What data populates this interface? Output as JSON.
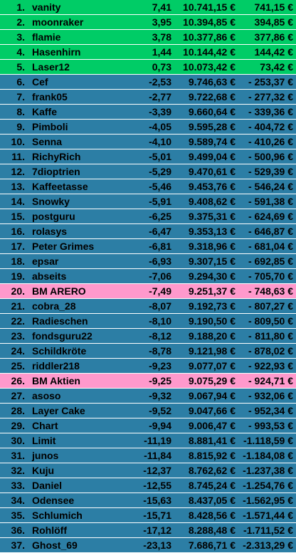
{
  "colors": {
    "top": "#00cc66",
    "base": "#2c7ea5",
    "highlight": "#ff99cc"
  },
  "rows": [
    {
      "rank": "1.",
      "name": "vanity",
      "change": "7,41",
      "value": "10.741,15 €",
      "sign": "",
      "delta": "741,15 €",
      "style": "green"
    },
    {
      "rank": "2.",
      "name": "moonraker",
      "change": "3,95",
      "value": "10.394,85 €",
      "sign": "",
      "delta": "394,85 €",
      "style": "green"
    },
    {
      "rank": "3.",
      "name": "flamie",
      "change": "3,78",
      "value": "10.377,86 €",
      "sign": "",
      "delta": "377,86 €",
      "style": "green"
    },
    {
      "rank": "4.",
      "name": "Hasenhirn",
      "change": "1,44",
      "value": "10.144,42 €",
      "sign": "",
      "delta": "144,42 €",
      "style": "green"
    },
    {
      "rank": "5.",
      "name": "Laser12",
      "change": "0,73",
      "value": "10.073,42 €",
      "sign": "",
      "delta": "73,42 €",
      "style": "green"
    },
    {
      "rank": "6.",
      "name": "Cef",
      "change": "-2,53",
      "value": "9.746,63 €",
      "sign": "-",
      "delta": "253,37 €",
      "style": "blue"
    },
    {
      "rank": "7.",
      "name": "frank05",
      "change": "-2,77",
      "value": "9.722,68 €",
      "sign": "-",
      "delta": "277,32 €",
      "style": "blue"
    },
    {
      "rank": "8.",
      "name": "Kaffe",
      "change": "-3,39",
      "value": "9.660,64 €",
      "sign": "-",
      "delta": "339,36 €",
      "style": "blue"
    },
    {
      "rank": "9.",
      "name": "Pimboli",
      "change": "-4,05",
      "value": "9.595,28 €",
      "sign": "-",
      "delta": "404,72 €",
      "style": "blue"
    },
    {
      "rank": "10.",
      "name": "Senna",
      "change": "-4,10",
      "value": "9.589,74 €",
      "sign": "-",
      "delta": "410,26 €",
      "style": "blue"
    },
    {
      "rank": "11.",
      "name": "RichyRich",
      "change": "-5,01",
      "value": "9.499,04 €",
      "sign": "-",
      "delta": "500,96 €",
      "style": "blue"
    },
    {
      "rank": "12.",
      "name": "7dioptrien",
      "change": "-5,29",
      "value": "9.470,61 €",
      "sign": "-",
      "delta": "529,39 €",
      "style": "blue"
    },
    {
      "rank": "13.",
      "name": "Kaffeetasse",
      "change": "-5,46",
      "value": "9.453,76 €",
      "sign": "-",
      "delta": "546,24 €",
      "style": "blue"
    },
    {
      "rank": "14.",
      "name": "Snowky",
      "change": "-5,91",
      "value": "9.408,62 €",
      "sign": "-",
      "delta": "591,38 €",
      "style": "blue"
    },
    {
      "rank": "15.",
      "name": "postguru",
      "change": "-6,25",
      "value": "9.375,31 €",
      "sign": "-",
      "delta": "624,69 €",
      "style": "blue"
    },
    {
      "rank": "16.",
      "name": "rolasys",
      "change": "-6,47",
      "value": "9.353,13 €",
      "sign": "-",
      "delta": "646,87 €",
      "style": "blue"
    },
    {
      "rank": "17.",
      "name": "Peter Grimes",
      "change": "-6,81",
      "value": "9.318,96 €",
      "sign": "-",
      "delta": "681,04 €",
      "style": "blue"
    },
    {
      "rank": "18.",
      "name": "epsar",
      "change": "-6,93",
      "value": "9.307,15 €",
      "sign": "-",
      "delta": "692,85 €",
      "style": "blue"
    },
    {
      "rank": "19.",
      "name": "abseits",
      "change": "-7,06",
      "value": "9.294,30 €",
      "sign": "-",
      "delta": "705,70 €",
      "style": "blue"
    },
    {
      "rank": "20.",
      "name": "BM ARERO",
      "change": "-7,49",
      "value": "9.251,37 €",
      "sign": "-",
      "delta": "748,63 €",
      "style": "pink"
    },
    {
      "rank": "21.",
      "name": "cobra_28",
      "change": "-8,07",
      "value": "9.192,73 €",
      "sign": "-",
      "delta": "807,27 €",
      "style": "blue"
    },
    {
      "rank": "22.",
      "name": "Radieschen",
      "change": "-8,10",
      "value": "9.190,50 €",
      "sign": "-",
      "delta": "809,50 €",
      "style": "blue"
    },
    {
      "rank": "23.",
      "name": "fondsguru22",
      "change": "-8,12",
      "value": "9.188,20 €",
      "sign": "-",
      "delta": "811,80 €",
      "style": "blue"
    },
    {
      "rank": "24.",
      "name": "Schildkröte",
      "change": "-8,78",
      "value": "9.121,98 €",
      "sign": "-",
      "delta": "878,02 €",
      "style": "blue"
    },
    {
      "rank": "25.",
      "name": "riddler218",
      "change": "-9,23",
      "value": "9.077,07 €",
      "sign": "-",
      "delta": "922,93 €",
      "style": "blue"
    },
    {
      "rank": "26.",
      "name": "BM Aktien",
      "change": "-9,25",
      "value": "9.075,29 €",
      "sign": "-",
      "delta": "924,71 €",
      "style": "pink"
    },
    {
      "rank": "27.",
      "name": "asoso",
      "change": "-9,32",
      "value": "9.067,94 €",
      "sign": "-",
      "delta": "932,06 €",
      "style": "blue"
    },
    {
      "rank": "28.",
      "name": "Layer Cake",
      "change": "-9,52",
      "value": "9.047,66 €",
      "sign": "-",
      "delta": "952,34 €",
      "style": "blue"
    },
    {
      "rank": "29.",
      "name": "Chart",
      "change": "-9,94",
      "value": "9.006,47 €",
      "sign": "-",
      "delta": "993,53 €",
      "style": "blue"
    },
    {
      "rank": "30.",
      "name": "Limit",
      "change": "-11,19",
      "value": "8.881,41 €",
      "sign": "",
      "delta": "-1.118,59 €",
      "style": "blue"
    },
    {
      "rank": "31.",
      "name": "junos",
      "change": "-11,84",
      "value": "8.815,92 €",
      "sign": "",
      "delta": "-1.184,08 €",
      "style": "blue"
    },
    {
      "rank": "32.",
      "name": "Kuju",
      "change": "-12,37",
      "value": "8.762,62 €",
      "sign": "",
      "delta": "-1.237,38 €",
      "style": "blue"
    },
    {
      "rank": "33.",
      "name": "Daniel",
      "change": "-12,55",
      "value": "8.745,24 €",
      "sign": "",
      "delta": "-1.254,76 €",
      "style": "blue"
    },
    {
      "rank": "34.",
      "name": "Odensee",
      "change": "-15,63",
      "value": "8.437,05 €",
      "sign": "",
      "delta": "-1.562,95 €",
      "style": "blue"
    },
    {
      "rank": "35.",
      "name": "Schlumich",
      "change": "-15,71",
      "value": "8.428,56 €",
      "sign": "",
      "delta": "-1.571,44 €",
      "style": "blue"
    },
    {
      "rank": "36.",
      "name": "Rohlöff",
      "change": "-17,12",
      "value": "8.288,48 €",
      "sign": "",
      "delta": "-1.711,52 €",
      "style": "blue"
    },
    {
      "rank": "37.",
      "name": "Ghost_69",
      "change": "-23,13",
      "value": "7.686,71 €",
      "sign": "",
      "delta": "-2.313,29 €",
      "style": "blue"
    }
  ]
}
